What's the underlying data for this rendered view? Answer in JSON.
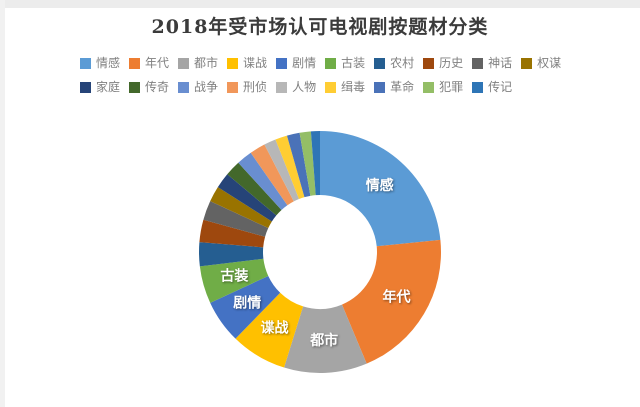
{
  "title": "2018年受市场认可电视剧按题材分类",
  "chart_data": {
    "type": "pie",
    "subtype": "donut",
    "title": "2018年受市场认可电视剧按题材分类",
    "legend_position": "top",
    "legend_row_break": 10,
    "start_angle_deg": 0,
    "direction": "clockwise",
    "inner_radius_ratio": 0.47,
    "categories": [
      "情感",
      "年代",
      "都市",
      "谍战",
      "剧情",
      "古装",
      "农村",
      "历史",
      "神话",
      "权谋",
      "家庭",
      "传奇",
      "战争",
      "刑侦",
      "人物",
      "缉毒",
      "革命",
      "犯罪",
      "传记"
    ],
    "values": [
      23.4,
      20.3,
      11.1,
      7.5,
      5.8,
      5.0,
      3.2,
      3.0,
      2.6,
      2.1,
      2.1,
      2.1,
      2.1,
      2.1,
      1.6,
      1.6,
      1.7,
      1.5,
      1.2
    ],
    "colors": [
      "#5B9BD5",
      "#ED7D31",
      "#A5A5A5",
      "#FFC000",
      "#4472C4",
      "#70AD47",
      "#255E91",
      "#9E480E",
      "#636363",
      "#997300",
      "#264478",
      "#43682B",
      "#698ED0",
      "#F1975A",
      "#B7B7B7",
      "#FFCD33",
      "#4A72B8",
      "#94BE66",
      "#2E75B6"
    ],
    "slice_labels_shown": [
      "情感",
      "年代",
      "都市",
      "谍战",
      "剧情",
      "古装"
    ]
  },
  "style": {
    "title_color": "#3b3b3b",
    "legend_text_color": "#808080",
    "slice_label_color": "#ffffff",
    "top_band_color": "#ececec",
    "background": "#ffffff"
  }
}
